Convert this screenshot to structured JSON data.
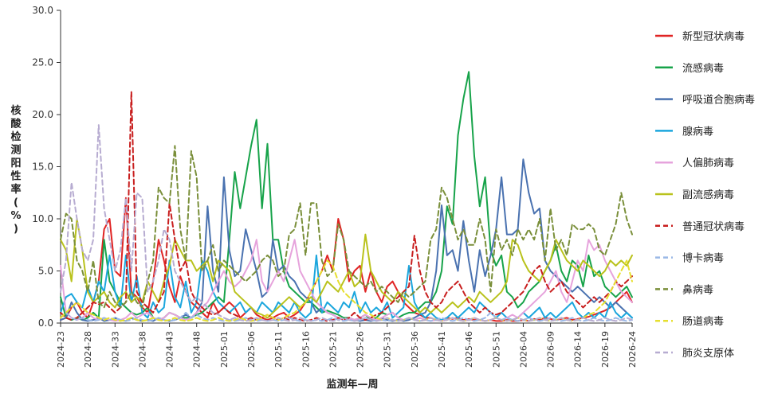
{
  "chart_data": {
    "type": "line",
    "xlabel": "监测年—周",
    "ylabel": "核酸检测阳性率(%)",
    "ylim": [
      0,
      30
    ],
    "y_ticks": [
      "0.0",
      "5.0",
      "10.0",
      "15.0",
      "20.0",
      "25.0",
      "30.0"
    ],
    "x_tick_labels": [
      "2024-23",
      "2024-28",
      "2024-33",
      "2024-38",
      "2024-43",
      "2024-48",
      "2025-01",
      "2025-06",
      "2025-11",
      "2025-16",
      "2025-21",
      "2025-26",
      "2025-31",
      "2025-36",
      "2025-41",
      "2025-46",
      "2025-51",
      "2026-04",
      "2026-09",
      "2026-14",
      "2026-19",
      "2026-24"
    ],
    "x_tick_step": 5,
    "n_points": 106,
    "legend_position": "right",
    "grid": false,
    "series": [
      {
        "name": "新型冠状病毒",
        "color": "#e02424",
        "dash": "solid",
        "values": [
          0.3,
          0.5,
          1.5,
          2.0,
          1.0,
          0.5,
          2.0,
          4.0,
          9.0,
          10.0,
          5.0,
          4.5,
          12.0,
          3.0,
          2.5,
          1.5,
          1.0,
          4.0,
          8.0,
          6.0,
          3.5,
          2.0,
          4.5,
          3.0,
          2.0,
          1.5,
          1.0,
          0.5,
          2.0,
          1.0,
          1.5,
          2.0,
          1.5,
          0.5,
          1.0,
          1.5,
          0.8,
          0.5,
          0.3,
          0.5,
          0.8,
          1.0,
          0.5,
          0.8,
          1.2,
          2.0,
          3.0,
          4.0,
          5.0,
          6.5,
          5.0,
          10.0,
          8.0,
          4.0,
          5.0,
          5.5,
          3.0,
          5.0,
          3.0,
          2.0,
          3.5,
          4.0,
          3.0,
          2.0,
          1.5,
          1.0,
          0.8,
          0.5,
          0.5,
          0.3,
          0.3,
          0.5,
          0.4,
          0.5,
          0.3,
          0.4,
          0.3,
          0.3,
          0.2,
          0.3,
          0.2,
          0.2,
          0.3,
          0.2,
          0.2,
          0.3,
          0.2,
          0.4,
          0.3,
          0.5,
          0.4,
          0.3,
          0.4,
          0.5,
          0.3,
          0.4,
          0.5,
          0.6,
          0.8,
          1.0,
          1.2,
          1.5,
          2.0,
          2.5,
          3.0,
          2.0
        ]
      },
      {
        "name": "流感病毒",
        "color": "#17a34a",
        "dash": "solid",
        "values": [
          2.5,
          0.5,
          0.3,
          0.5,
          0.3,
          0.5,
          1.0,
          0.5,
          8.0,
          4.0,
          3.0,
          2.0,
          1.5,
          1.0,
          0.8,
          1.0,
          1.5,
          0.5,
          0.3,
          0.5,
          1.0,
          0.8,
          0.5,
          0.5,
          0.5,
          0.8,
          1.0,
          1.5,
          2.0,
          2.5,
          2.0,
          8.0,
          14.5,
          11.0,
          14.0,
          17.0,
          19.5,
          11.0,
          17.2,
          8.0,
          8.0,
          5.0,
          3.5,
          3.0,
          2.5,
          2.0,
          2.0,
          1.5,
          1.0,
          1.2,
          1.0,
          0.8,
          0.5,
          0.5,
          0.3,
          0.5,
          0.8,
          0.3,
          0.5,
          1.0,
          0.8,
          1.0,
          0.5,
          0.8,
          1.0,
          1.0,
          1.5,
          2.0,
          2.0,
          3.0,
          5.0,
          11.2,
          9.5,
          18.0,
          21.5,
          24.1,
          16.0,
          11.2,
          14.0,
          7.0,
          5.5,
          6.5,
          3.0,
          2.5,
          1.5,
          2.0,
          3.0,
          3.5,
          4.0,
          5.0,
          6.0,
          7.5,
          5.0,
          4.0,
          6.0,
          5.5,
          3.5,
          6.5,
          4.5,
          5.0,
          3.5,
          3.0,
          2.5,
          3.0,
          3.5,
          2.5
        ]
      },
      {
        "name": "呼吸道合胞病毒",
        "color": "#4a72b0",
        "dash": "solid",
        "values": [
          0.3,
          0.5,
          2.0,
          1.0,
          0.3,
          0.2,
          0.3,
          0.5,
          0.2,
          0.3,
          0.5,
          0.3,
          0.2,
          0.5,
          0.3,
          0.2,
          0.3,
          0.2,
          0.5,
          0.3,
          0.2,
          0.3,
          0.5,
          0.8,
          0.5,
          1.0,
          2.0,
          11.2,
          5.0,
          3.0,
          14.0,
          7.0,
          4.5,
          5.0,
          9.0,
          7.0,
          5.0,
          2.5,
          3.0,
          8.0,
          5.0,
          5.5,
          4.5,
          4.0,
          3.0,
          2.5,
          2.0,
          1.0,
          1.5,
          1.0,
          0.8,
          0.5,
          0.3,
          0.5,
          0.3,
          0.2,
          0.3,
          0.2,
          0.3,
          0.5,
          0.3,
          0.2,
          0.3,
          0.2,
          0.3,
          0.5,
          0.8,
          1.0,
          2.0,
          5.0,
          11.3,
          6.5,
          7.0,
          5.0,
          9.8,
          6.0,
          3.0,
          7.0,
          4.5,
          6.5,
          9.0,
          14.0,
          8.5,
          8.5,
          9.0,
          15.7,
          12.5,
          10.5,
          11.0,
          6.0,
          5.0,
          4.5,
          4.0,
          3.5,
          3.0,
          3.5,
          3.0,
          2.5,
          2.0,
          2.5,
          2.0,
          1.5,
          2.0,
          1.5,
          1.0,
          0.5
        ]
      },
      {
        "name": "腺病毒",
        "color": "#1ba6dd",
        "dash": "solid",
        "values": [
          1.0,
          2.5,
          2.8,
          2.0,
          1.5,
          3.5,
          2.0,
          4.0,
          3.0,
          6.5,
          3.0,
          1.5,
          6.5,
          2.0,
          4.5,
          1.0,
          0.5,
          2.0,
          1.0,
          1.5,
          6.0,
          2.5,
          1.5,
          4.0,
          1.0,
          2.0,
          6.0,
          5.0,
          3.0,
          2.0,
          1.5,
          1.0,
          1.5,
          2.0,
          1.0,
          1.5,
          1.0,
          2.0,
          1.5,
          1.0,
          2.0,
          1.5,
          1.0,
          2.0,
          1.0,
          0.5,
          1.0,
          6.5,
          1.0,
          2.0,
          1.5,
          1.0,
          2.0,
          1.5,
          3.0,
          1.0,
          2.0,
          1.0,
          1.5,
          1.0,
          2.0,
          0.5,
          1.0,
          1.5,
          5.5,
          2.0,
          1.0,
          0.5,
          1.0,
          0.5,
          0.3,
          0.5,
          1.0,
          0.5,
          1.0,
          1.5,
          1.0,
          2.0,
          1.5,
          1.0,
          0.5,
          1.0,
          0.5,
          0.3,
          0.5,
          1.0,
          0.5,
          1.0,
          1.5,
          0.5,
          1.0,
          0.5,
          1.0,
          1.5,
          2.0,
          1.0,
          0.5,
          1.0,
          0.5,
          1.0,
          0.5,
          2.0,
          1.0,
          0.5,
          1.0,
          0.5
        ]
      },
      {
        "name": "人偏肺病毒",
        "color": "#e6a3dc",
        "dash": "solid",
        "values": [
          5.5,
          1.0,
          0.5,
          0.3,
          0.5,
          1.0,
          0.5,
          0.3,
          0.5,
          0.3,
          0.2,
          0.3,
          0.5,
          1.0,
          0.5,
          0.8,
          1.0,
          0.5,
          0.3,
          0.5,
          1.0,
          0.8,
          0.5,
          0.3,
          0.5,
          1.0,
          1.5,
          2.0,
          3.0,
          4.0,
          5.0,
          4.0,
          3.5,
          4.0,
          5.0,
          6.0,
          8.0,
          4.0,
          3.0,
          4.0,
          5.0,
          4.0,
          6.0,
          8.0,
          5.0,
          4.0,
          3.0,
          2.0,
          1.5,
          1.0,
          0.8,
          0.5,
          0.3,
          0.5,
          0.3,
          0.5,
          0.8,
          0.5,
          0.3,
          0.5,
          0.8,
          1.0,
          0.5,
          0.3,
          0.5,
          0.3,
          0.5,
          0.3,
          0.2,
          0.3,
          0.2,
          0.3,
          0.5,
          0.3,
          0.2,
          0.3,
          0.5,
          0.3,
          0.2,
          0.3,
          0.5,
          0.3,
          0.5,
          0.8,
          0.5,
          1.0,
          1.5,
          2.0,
          2.5,
          3.0,
          4.0,
          5.0,
          3.0,
          2.0,
          4.0,
          6.0,
          5.0,
          8.0,
          7.0,
          7.5,
          6.0,
          5.0,
          4.0,
          3.0,
          2.5,
          2.0
        ]
      },
      {
        "name": "副流感病毒",
        "color": "#b9c21c",
        "dash": "solid",
        "values": [
          8.0,
          7.0,
          4.0,
          10.0,
          7.0,
          3.0,
          2.0,
          2.5,
          3.0,
          2.0,
          1.5,
          2.5,
          3.0,
          2.0,
          2.5,
          2.0,
          4.0,
          3.0,
          2.0,
          4.0,
          5.5,
          8.0,
          7.0,
          6.0,
          6.0,
          5.0,
          5.5,
          6.0,
          4.0,
          6.0,
          5.5,
          5.0,
          3.0,
          2.5,
          2.0,
          1.5,
          1.0,
          0.8,
          0.5,
          1.0,
          1.5,
          2.0,
          2.5,
          2.0,
          1.5,
          2.0,
          2.5,
          2.0,
          3.0,
          4.0,
          3.5,
          3.0,
          4.0,
          5.0,
          3.5,
          4.0,
          8.5,
          5.0,
          4.0,
          3.0,
          2.5,
          2.0,
          3.0,
          2.5,
          2.0,
          1.5,
          1.0,
          1.5,
          1.0,
          1.5,
          1.0,
          1.5,
          2.0,
          1.5,
          2.0,
          2.5,
          2.0,
          3.0,
          2.5,
          2.0,
          2.5,
          3.0,
          4.0,
          8.0,
          7.5,
          6.0,
          5.0,
          4.5,
          4.0,
          5.0,
          6.0,
          8.0,
          7.0,
          6.0,
          5.5,
          5.0,
          6.0,
          5.5,
          5.0,
          4.5,
          5.0,
          6.0,
          5.5,
          6.0,
          5.5,
          6.5
        ]
      },
      {
        "name": "普通冠状病毒",
        "color": "#c81e1e",
        "dash": "dashed",
        "values": [
          1.0,
          0.5,
          0.3,
          0.5,
          1.0,
          1.5,
          2.0,
          1.8,
          2.0,
          1.5,
          1.0,
          1.5,
          2.0,
          22.2,
          3.0,
          2.0,
          1.5,
          1.0,
          2.0,
          3.0,
          11.5,
          8.0,
          5.0,
          6.0,
          3.0,
          2.0,
          1.5,
          1.0,
          0.8,
          1.0,
          1.5,
          1.0,
          0.8,
          0.5,
          0.3,
          0.5,
          0.3,
          0.5,
          0.8,
          0.5,
          0.3,
          0.5,
          0.3,
          0.5,
          0.3,
          0.2,
          0.3,
          0.5,
          0.3,
          0.2,
          0.3,
          0.5,
          0.3,
          0.5,
          1.0,
          0.5,
          0.3,
          0.5,
          0.8,
          1.0,
          1.5,
          2.0,
          2.5,
          3.0,
          3.5,
          8.4,
          5.0,
          3.0,
          2.0,
          1.5,
          2.0,
          3.0,
          3.5,
          4.0,
          3.0,
          2.0,
          1.5,
          1.0,
          1.5,
          1.0,
          0.8,
          1.0,
          1.5,
          2.0,
          2.5,
          3.0,
          4.0,
          5.0,
          5.5,
          4.0,
          3.0,
          3.5,
          4.0,
          3.0,
          2.5,
          2.0,
          1.5,
          2.0,
          2.5,
          2.0,
          2.5,
          3.0,
          4.0,
          3.5,
          4.0,
          4.5
        ]
      },
      {
        "name": "博卡病毒",
        "color": "#9ab8e6",
        "dash": "dashed",
        "values": [
          0.5,
          1.0,
          0.5,
          0.3,
          0.5,
          0.3,
          0.2,
          0.3,
          0.5,
          0.3,
          0.5,
          0.3,
          0.2,
          0.3,
          0.5,
          0.3,
          0.2,
          0.3,
          0.5,
          0.3,
          0.2,
          0.3,
          0.5,
          1.0,
          0.5,
          0.8,
          0.5,
          0.3,
          0.5,
          0.3,
          0.2,
          0.3,
          0.2,
          0.3,
          0.5,
          0.3,
          0.2,
          0.3,
          0.2,
          0.3,
          0.2,
          0.3,
          0.5,
          0.3,
          0.2,
          0.3,
          0.2,
          0.3,
          0.2,
          0.3,
          0.5,
          0.3,
          0.2,
          0.3,
          0.2,
          0.3,
          0.5,
          0.3,
          0.2,
          0.3,
          0.2,
          0.3,
          0.2,
          0.3,
          0.5,
          0.3,
          0.2,
          0.3,
          0.2,
          0.3,
          0.5,
          0.3,
          0.2,
          0.3,
          0.5,
          0.3,
          0.2,
          0.3,
          0.5,
          1.0,
          0.5,
          0.3,
          0.5,
          0.3,
          0.2,
          0.3,
          0.5,
          0.3,
          0.2,
          0.3,
          0.5,
          0.3,
          0.2,
          0.3,
          0.5,
          0.3,
          0.2,
          0.3,
          0.5,
          0.3,
          0.2,
          0.3,
          0.5,
          0.3,
          0.2,
          0.3
        ]
      },
      {
        "name": "鼻病毒",
        "color": "#7a8f3a",
        "dash": "dashed",
        "values": [
          8.0,
          10.5,
          10.0,
          6.0,
          5.0,
          3.0,
          6.0,
          2.0,
          1.5,
          3.0,
          2.0,
          1.5,
          2.0,
          3.0,
          2.0,
          1.5,
          4.0,
          6.0,
          13.0,
          12.0,
          11.5,
          17.0,
          9.0,
          6.0,
          16.5,
          14.0,
          5.0,
          6.0,
          7.5,
          5.0,
          6.0,
          5.5,
          5.0,
          4.5,
          4.0,
          4.5,
          5.0,
          6.0,
          6.5,
          6.0,
          4.5,
          5.0,
          8.5,
          9.0,
          11.5,
          6.5,
          11.5,
          11.5,
          6.0,
          4.5,
          5.0,
          9.5,
          8.0,
          5.0,
          4.5,
          4.0,
          3.5,
          4.0,
          3.0,
          3.5,
          3.0,
          2.5,
          2.0,
          3.0,
          2.5,
          3.0,
          3.5,
          4.0,
          8.0,
          9.0,
          13.0,
          12.0,
          10.0,
          8.0,
          9.0,
          7.5,
          7.5,
          10.0,
          8.0,
          3.0,
          9.0,
          7.0,
          8.0,
          6.5,
          9.0,
          8.0,
          9.0,
          8.0,
          10.0,
          6.0,
          11.0,
          7.0,
          8.0,
          6.5,
          9.5,
          9.0,
          9.0,
          9.5,
          9.0,
          7.0,
          6.5,
          8.0,
          9.5,
          12.5,
          10.0,
          8.5
        ]
      },
      {
        "name": "肠道病毒",
        "color": "#e6df2e",
        "dash": "dashed",
        "values": [
          0.5,
          1.0,
          1.5,
          2.0,
          1.5,
          1.0,
          0.8,
          0.5,
          0.3,
          0.5,
          0.3,
          0.2,
          0.3,
          0.5,
          0.3,
          0.2,
          0.3,
          0.5,
          0.3,
          0.2,
          0.3,
          0.5,
          0.3,
          0.2,
          0.3,
          0.5,
          0.3,
          0.2,
          0.3,
          0.5,
          0.3,
          0.2,
          0.3,
          0.5,
          0.3,
          0.2,
          0.3,
          0.5,
          0.8,
          0.5,
          0.3,
          0.5,
          0.8,
          1.0,
          1.5,
          2.0,
          3.0,
          4.0,
          5.0,
          6.0,
          5.5,
          4.0,
          3.0,
          2.5,
          2.0,
          1.5,
          1.0,
          0.8,
          0.5,
          0.3,
          0.5,
          0.3,
          0.2,
          0.3,
          0.5,
          0.3,
          0.2,
          0.3,
          0.5,
          0.3,
          0.2,
          0.3,
          0.5,
          0.3,
          0.2,
          0.3,
          0.5,
          0.3,
          0.2,
          0.3,
          0.5,
          0.3,
          0.2,
          0.3,
          0.5,
          0.3,
          0.2,
          0.3,
          0.5,
          0.3,
          0.2,
          0.3,
          0.5,
          0.3,
          0.2,
          0.3,
          0.5,
          0.8,
          1.0,
          1.5,
          2.0,
          3.0,
          4.0,
          5.0,
          6.0,
          4.0
        ]
      },
      {
        "name": "肺炎支原体",
        "color": "#b7acd1",
        "dash": "dashed",
        "values": [
          3.0,
          6.0,
          13.5,
          10.0,
          7.0,
          6.0,
          8.0,
          19.0,
          11.0,
          8.0,
          5.0,
          7.0,
          12.0,
          5.0,
          12.5,
          12.0,
          3.0,
          4.0,
          6.0,
          9.0,
          8.0,
          5.0,
          4.0,
          3.0,
          2.0,
          2.5,
          2.0,
          1.5,
          1.0,
          0.8,
          0.5,
          0.3,
          0.5,
          0.3,
          0.2,
          0.3,
          0.5,
          0.3,
          0.2,
          0.3,
          0.5,
          0.3,
          0.2,
          0.3,
          0.5,
          0.3,
          0.2,
          0.3,
          0.5,
          0.3,
          0.2,
          0.3,
          0.5,
          0.3,
          0.2,
          0.3,
          0.5,
          0.3,
          0.2,
          0.3,
          0.5,
          0.3,
          0.2,
          0.3,
          0.5,
          0.3,
          0.2,
          0.3,
          0.5,
          0.3,
          0.2,
          0.3,
          0.5,
          0.3,
          0.2,
          0.3,
          0.5,
          0.3,
          0.2,
          0.3,
          0.5,
          0.3,
          0.2,
          0.3,
          0.5,
          0.3,
          0.2,
          0.3,
          0.5,
          0.3,
          0.2,
          0.3,
          0.5,
          0.3,
          0.2,
          0.3,
          0.5,
          0.3,
          0.2,
          0.3,
          0.5,
          0.3,
          0.2,
          0.3,
          0.5,
          0.3
        ]
      }
    ]
  }
}
